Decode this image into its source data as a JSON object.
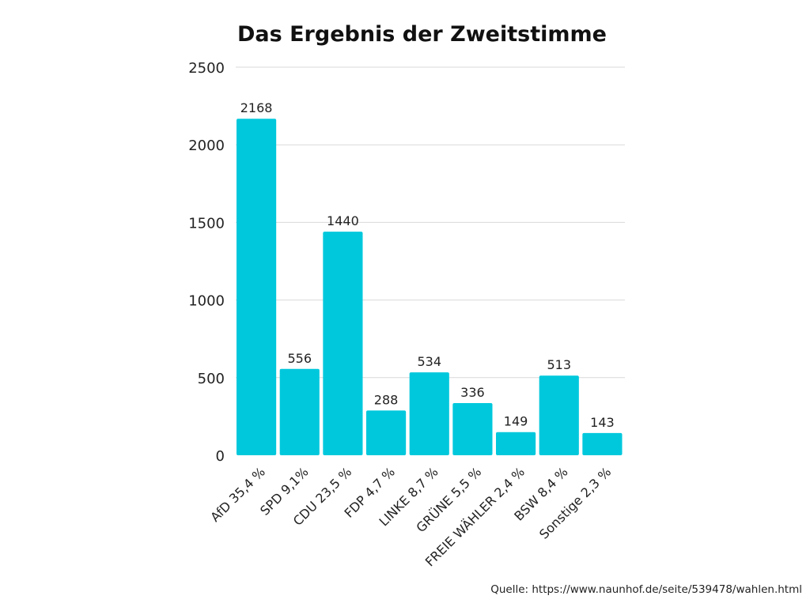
{
  "chart_data": {
    "type": "bar",
    "title": "Das Ergebnis der Zweitstimme",
    "xlabel": "",
    "ylabel": "",
    "categories": [
      "AfD 35,4 %",
      "SPD 9,1%",
      "CDU 23,5 %",
      "FDP 4,7 %",
      "LINKE 8,7 %",
      "GRÜNE 5,5 %",
      "FREIE WÄHLER 2,4 %",
      "BSW 8,4 %",
      "Sonstige 2,3 %"
    ],
    "values": [
      2168,
      556,
      1440,
      288,
      534,
      336,
      149,
      513,
      143
    ],
    "data_labels": [
      "2168",
      "556",
      "1440",
      "288",
      "534",
      "336",
      "149",
      "513",
      "143"
    ],
    "ylim": [
      0,
      2500
    ],
    "yticks": [
      0,
      500,
      1000,
      1500,
      2000,
      2500
    ],
    "ytick_labels": [
      "0",
      "500",
      "1000",
      "1500",
      "2000",
      "2500"
    ],
    "grid": true,
    "legend": "none",
    "bar_color": "#00c8dc"
  },
  "source": "Quelle: https://www.naunhof.de/seite/539478/wahlen.html"
}
